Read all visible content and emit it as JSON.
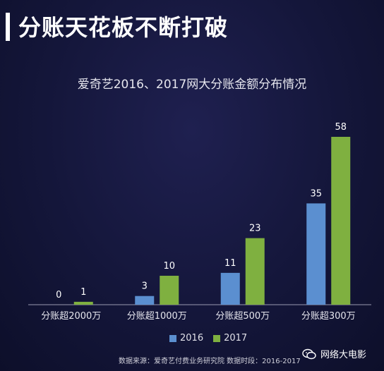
{
  "header": {
    "headline": "分账天花板不断打破"
  },
  "chart_data": {
    "type": "bar",
    "title": "爱奇艺2016、2017网大分账金额分布情况",
    "categories": [
      "分账超2000万",
      "分账超1000万",
      "分账超500万",
      "分账超300万"
    ],
    "series": [
      {
        "name": "2016",
        "values": [
          0,
          3,
          11,
          35
        ],
        "color": "#5b8fd0"
      },
      {
        "name": "2017",
        "values": [
          1,
          10,
          23,
          58
        ],
        "color": "#7fb040"
      }
    ],
    "ylim": [
      0,
      62
    ],
    "grid": false,
    "legend": "bottom-center"
  },
  "footer": {
    "source": "数据来源：爱奇艺付费业务研究院   数据时段：2016-2017",
    "watermark": "网络大电影"
  },
  "icons": {
    "watermark_icon": "wechat-icon"
  }
}
